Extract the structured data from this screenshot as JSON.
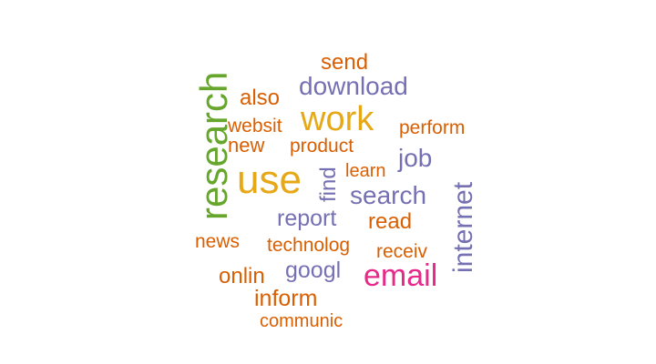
{
  "palette": {
    "green": "#67a62c",
    "gold": "#e6a817",
    "purple": "#7570b3",
    "orange": "#d95f02",
    "magenta": "#e7298a"
  },
  "words": {
    "research": {
      "text": "research",
      "color": "#67a62c"
    },
    "use": {
      "text": "use",
      "color": "#e6a817"
    },
    "work": {
      "text": "work",
      "color": "#e6a817"
    },
    "email": {
      "text": "email",
      "color": "#e7298a"
    },
    "internet": {
      "text": "internet",
      "color": "#7570b3"
    },
    "download": {
      "text": "download",
      "color": "#7570b3"
    },
    "search": {
      "text": "search",
      "color": "#7570b3"
    },
    "job": {
      "text": "job",
      "color": "#7570b3"
    },
    "find": {
      "text": "find",
      "color": "#7570b3"
    },
    "report": {
      "text": "report",
      "color": "#7570b3"
    },
    "googl": {
      "text": "googl",
      "color": "#7570b3"
    },
    "send": {
      "text": "send",
      "color": "#d95f02"
    },
    "also": {
      "text": "also",
      "color": "#d95f02"
    },
    "websit": {
      "text": "websit",
      "color": "#d95f02"
    },
    "new": {
      "text": "new",
      "color": "#d95f02"
    },
    "product": {
      "text": "product",
      "color": "#d95f02"
    },
    "perform": {
      "text": "perform",
      "color": "#d95f02"
    },
    "learn": {
      "text": "learn",
      "color": "#d95f02"
    },
    "read": {
      "text": "read",
      "color": "#d95f02"
    },
    "news": {
      "text": "news",
      "color": "#d95f02"
    },
    "technolog": {
      "text": "technolog",
      "color": "#d95f02"
    },
    "receiv": {
      "text": "receiv",
      "color": "#d95f02"
    },
    "onlin": {
      "text": "onlin",
      "color": "#d95f02"
    },
    "inform": {
      "text": "inform",
      "color": "#d95f02"
    },
    "communic": {
      "text": "communic",
      "color": "#d95f02"
    }
  }
}
